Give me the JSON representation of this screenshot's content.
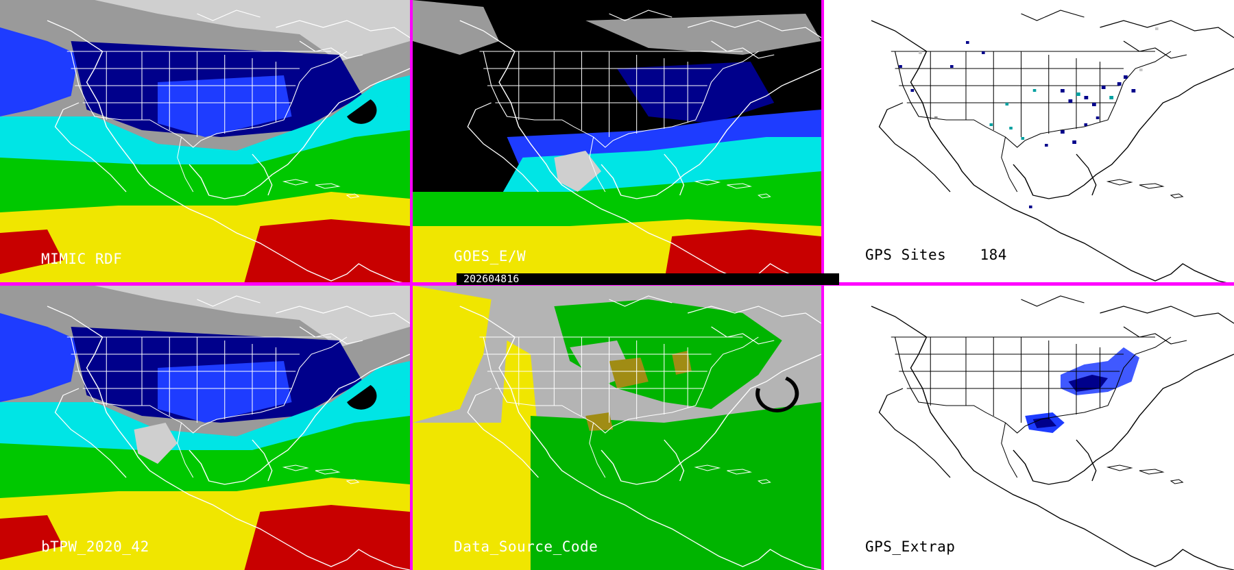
{
  "timestamp": "202604816",
  "colors": {
    "separator": "#ff00ff",
    "tpw_scale": [
      "#9a9a9a",
      "#00008b",
      "#1e3cff",
      "#00e5e5",
      "#00c800",
      "#f0e600",
      "#c80000"
    ],
    "data_source_code": [
      "#b4b4b4",
      "#f0e600",
      "#00b400",
      "#a08c14"
    ],
    "gps_sites": [
      "#00008b",
      "#00a0a0",
      "#808080",
      "#c8c8c8"
    ]
  },
  "panels": [
    {
      "id": "mimic-rdf",
      "label": "MIMIC RDF"
    },
    {
      "id": "goes-ew",
      "label": "GOES_E/W"
    },
    {
      "id": "gps-sites",
      "label": "GPS Sites",
      "count": "184"
    },
    {
      "id": "btpw",
      "label": "bTPW_2020_42"
    },
    {
      "id": "data-source-code",
      "label": "Data_Source_Code"
    },
    {
      "id": "gps-extrap",
      "label": "GPS_Extrap"
    }
  ]
}
